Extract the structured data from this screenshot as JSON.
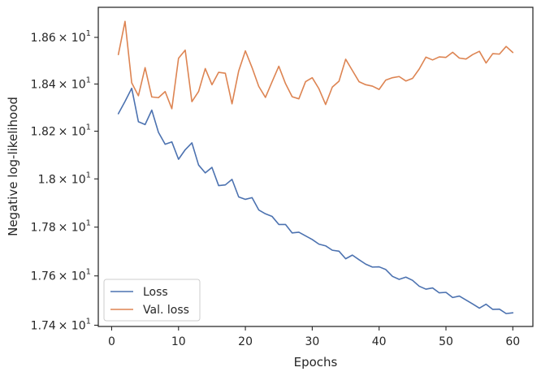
{
  "chart_data": {
    "type": "line",
    "xlabel": "Epochs",
    "ylabel": "Negative log-likelihood",
    "xlim": [
      -2,
      63
    ],
    "ylim": [
      17.395,
      18.73
    ],
    "yscale": "log",
    "x_ticks": [
      0,
      10,
      20,
      30,
      40,
      50,
      60
    ],
    "x_tick_labels": [
      "0",
      "10",
      "20",
      "30",
      "40",
      "50",
      "60"
    ],
    "y_ticks": [
      17.4,
      17.6,
      17.8,
      18.0,
      18.2,
      18.4,
      18.6
    ],
    "y_tick_labels": [
      {
        "mantissa": "1.74",
        "base": "× 10",
        "exp": "1"
      },
      {
        "mantissa": "1.76",
        "base": "× 10",
        "exp": "1"
      },
      {
        "mantissa": "1.78",
        "base": "× 10",
        "exp": "1"
      },
      {
        "mantissa": "1.8",
        "base": "× 10",
        "exp": "1"
      },
      {
        "mantissa": "1.82",
        "base": "× 10",
        "exp": "1"
      },
      {
        "mantissa": "1.84",
        "base": "× 10",
        "exp": "1"
      },
      {
        "mantissa": "1.86",
        "base": "× 10",
        "exp": "1"
      }
    ],
    "legend": {
      "position": "lower-left",
      "entries": [
        "Loss",
        "Val. loss"
      ]
    },
    "x": [
      1,
      2,
      3,
      4,
      5,
      6,
      7,
      8,
      9,
      10,
      11,
      12,
      13,
      14,
      15,
      16,
      17,
      18,
      19,
      20,
      21,
      22,
      23,
      24,
      25,
      26,
      27,
      28,
      29,
      30,
      31,
      32,
      33,
      34,
      35,
      36,
      37,
      38,
      39,
      40,
      41,
      42,
      43,
      44,
      45,
      46,
      47,
      48,
      49,
      50,
      51,
      52,
      53,
      54,
      55,
      56,
      57,
      58,
      59,
      60
    ],
    "series": [
      {
        "name": "Loss",
        "color": "#4c72b0",
        "values": [
          18.274,
          18.326,
          18.382,
          18.24,
          18.228,
          18.289,
          18.195,
          18.145,
          18.155,
          18.082,
          18.122,
          18.151,
          18.058,
          18.025,
          18.048,
          17.972,
          17.975,
          17.998,
          17.925,
          17.915,
          17.922,
          17.871,
          17.855,
          17.844,
          17.811,
          17.811,
          17.776,
          17.779,
          17.764,
          17.749,
          17.73,
          17.723,
          17.705,
          17.701,
          17.67,
          17.685,
          17.666,
          17.648,
          17.636,
          17.637,
          17.626,
          17.598,
          17.586,
          17.595,
          17.582,
          17.558,
          17.546,
          17.551,
          17.531,
          17.533,
          17.512,
          17.518,
          17.502,
          17.486,
          17.469,
          17.485,
          17.464,
          17.465,
          17.447,
          17.45
        ]
      },
      {
        "name": "Val. loss",
        "color": "#dd8452",
        "values": [
          18.526,
          18.669,
          18.405,
          18.35,
          18.47,
          18.345,
          18.342,
          18.368,
          18.295,
          18.51,
          18.545,
          18.325,
          18.368,
          18.466,
          18.397,
          18.45,
          18.446,
          18.316,
          18.456,
          18.542,
          18.47,
          18.39,
          18.343,
          18.41,
          18.476,
          18.402,
          18.346,
          18.337,
          18.41,
          18.427,
          18.38,
          18.313,
          18.387,
          18.412,
          18.506,
          18.458,
          18.41,
          18.397,
          18.391,
          18.377,
          18.417,
          18.427,
          18.432,
          18.413,
          18.424,
          18.464,
          18.515,
          18.503,
          18.516,
          18.514,
          18.536,
          18.511,
          18.507,
          18.526,
          18.54,
          18.49,
          18.53,
          18.528,
          18.561,
          18.535
        ]
      }
    ]
  }
}
